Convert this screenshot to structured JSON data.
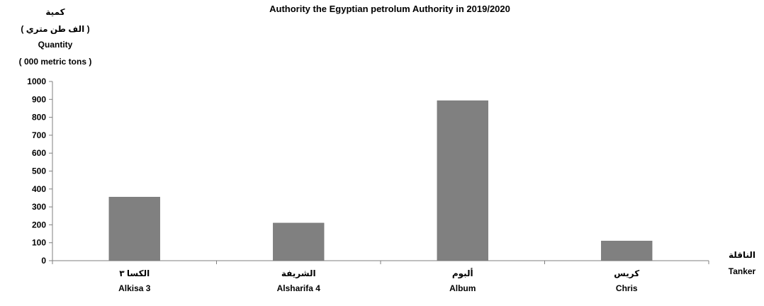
{
  "chart_data": {
    "type": "bar",
    "title": "Authority the Egyptian petrolum Authority in 2019/2020",
    "ylabel": [
      "كمية",
      "( الف طن متري )",
      "Quantity",
      "( 000 metric tons )"
    ],
    "xlabel": [
      "الناقلة",
      "Tanker"
    ],
    "categories": [
      {
        "ar": "الكسا ٣",
        "en": "Alkisa 3"
      },
      {
        "ar": "الشريفة",
        "en": "Alsharifa 4"
      },
      {
        "ar": "ألبوم",
        "en": "Album"
      },
      {
        "ar": "كريس",
        "en": "Chris"
      }
    ],
    "values": [
      355,
      210,
      893,
      110
    ],
    "ylim": [
      0,
      1000
    ],
    "yticks": [
      0,
      100,
      200,
      300,
      400,
      500,
      600,
      700,
      800,
      900,
      1000
    ],
    "bar_color": "#808080",
    "grid": false,
    "legend": "none"
  }
}
